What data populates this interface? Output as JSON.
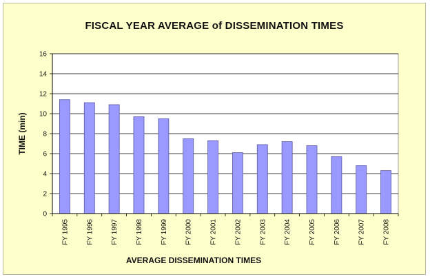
{
  "chart_data": {
    "type": "bar",
    "title": "FISCAL YEAR AVERAGE of DISSEMINATION  TIMES",
    "xlabel": "AVERAGE DISSEMINATION TIMES",
    "ylabel": "TIME (min)",
    "categories": [
      "FY 1995",
      "FY 1996",
      "FY 1997",
      "FY 1998",
      "FY 1999",
      "FY 2000",
      "FY 2001",
      "FY 2002",
      "FY 2003",
      "FY 2004",
      "FY 2005",
      "FY 2006",
      "FY 2007",
      "FY 2008"
    ],
    "values": [
      11.4,
      11.1,
      10.9,
      9.7,
      9.5,
      7.5,
      7.3,
      6.1,
      6.9,
      7.2,
      6.8,
      5.7,
      4.8,
      4.3
    ],
    "ylim": [
      0,
      16
    ],
    "yticks": [
      0,
      2,
      4,
      6,
      8,
      10,
      12,
      14,
      16
    ],
    "grid": true,
    "legend": "none",
    "colors": {
      "background": "#ffffcc",
      "plot_area": "#ffffff",
      "bar_fill": "#9999ff",
      "bar_stroke": "#5a5aa0",
      "gridline": "#000000"
    }
  }
}
